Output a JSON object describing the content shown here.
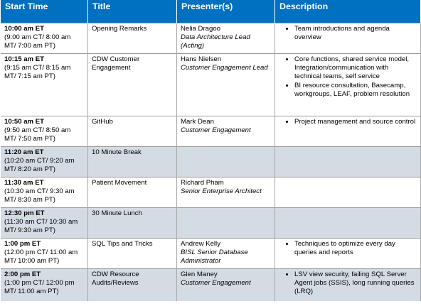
{
  "columns": [
    "Start Time",
    "Title",
    "Presenter(s)",
    "Description"
  ],
  "rows": [
    {
      "time": "10:00 am ET",
      "time_detail": "(9:00 am CT/ 8:00 am MT/ 7:00 am PT)",
      "title": "Opening Remarks",
      "presenter": "Nelia Dragoo",
      "role": "Data Architecture Lead (Acting)",
      "description": [
        "Team introductions and agenda overview"
      ]
    },
    {
      "time": "10:15 am ET",
      "time_detail": "(9:15 am CT/ 8:15 am MT/ 7:15 am PT)",
      "title": "CDW Customer Engagement",
      "presenter": "Hans Nielsen",
      "role": "Customer Engagement Lead",
      "description": [
        "Core functions, shared service model, Integration/communication with technical teams, self service",
        "BI resource consultation, Basecamp, workgroups, LEAF, problem resolution"
      ]
    },
    {
      "time": "10:50 am ET",
      "time_detail": "(9:50 am CT/ 8:50 am MT/ 7:50 am PT)",
      "title": "GitHub",
      "presenter": "Mark Dean",
      "role": "Customer Engagement",
      "description": [
        "Project management and source control"
      ]
    },
    {
      "time": "11:20 am ET",
      "time_detail": "(10:20 am CT/ 9:20 am MT/ 8:20 am PT)",
      "title": "10 Minute Break",
      "presenter": "",
      "role": "",
      "description": []
    },
    {
      "time": "11:30 am ET",
      "time_detail": "(10:30 am CT/ 9:30 am MT/ 8:30 am PT)",
      "title": "Patient Movement",
      "presenter": "Richard Pham",
      "role": "Senior Enterprise Architect",
      "description": []
    },
    {
      "time": "12:30 pm ET",
      "time_detail": "(11:30 am CT/ 10:30 am MT/ 9:30 am PT)",
      "title": "30 Minute Lunch",
      "presenter": "",
      "role": "",
      "description": []
    },
    {
      "time": "1:00 pm ET",
      "time_detail": "(12:00 pm CT/ 11:00 am MT/ 10:00 am PT)",
      "title": "SQL Tips and Tricks",
      "presenter": "Andrew Kelly",
      "role": "BISL Senior Database Administrator",
      "description": [
        "Techniques to optimize every day queries and reports"
      ]
    },
    {
      "time": "2:00 pm ET",
      "time_detail": "(1:00 pm CT/ 12:00 pm MT/ 11:00 am PT)",
      "title": "CDW Resource Audits/Reviews",
      "presenter": "Glen Maney",
      "role": "Customer Engagement",
      "description": [
        "LSV view security, failing SQL Server Agent jobs (SSIS), long running queries (LRQ)"
      ]
    }
  ],
  "colors": {
    "header_bg": "#0070c0",
    "header_text": "#ffffff",
    "grey_row": "#d3dbe3"
  }
}
